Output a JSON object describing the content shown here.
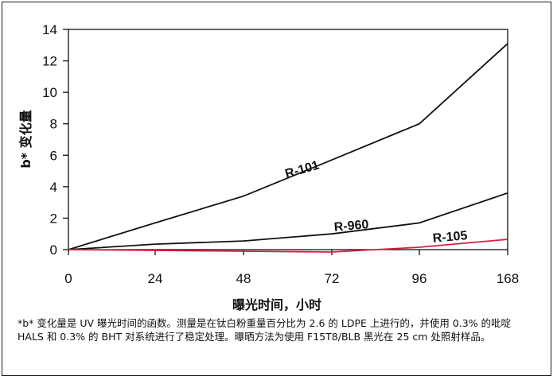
{
  "chart_data": {
    "type": "line",
    "categories": [
      "0",
      "24",
      "48",
      "72",
      "96",
      "168"
    ],
    "ylabel": "b* 变化量",
    "xlabel": "曝光时间，小时",
    "ylim": [
      0,
      14
    ],
    "yticks": [
      0,
      2,
      4,
      6,
      8,
      10,
      12,
      14
    ],
    "grid": false,
    "series": [
      {
        "name": "R-101",
        "values": [
          0,
          1.7,
          3.4,
          5.7,
          8.0,
          13.1
        ],
        "color": "#111111"
      },
      {
        "name": "R-960",
        "values": [
          0,
          0.35,
          0.55,
          1.0,
          1.7,
          3.6
        ],
        "color": "#111111"
      },
      {
        "name": "R-105",
        "values": [
          0,
          -0.05,
          -0.1,
          -0.15,
          0.15,
          0.65
        ],
        "color": "#d4213d"
      }
    ]
  },
  "caption": "*b* 变化量是 UV 曝光时间的函数。测量是在钛白粉重量百分比为 2.6 的 LDPE 上进行的，并使用 0.3% 的吡啶 HALS 和 0.3% 的 BHT 对系统进行了稳定处理。曝晒方法为使用 F15T8/BLB 黑光在 25 cm 处照射样品。"
}
